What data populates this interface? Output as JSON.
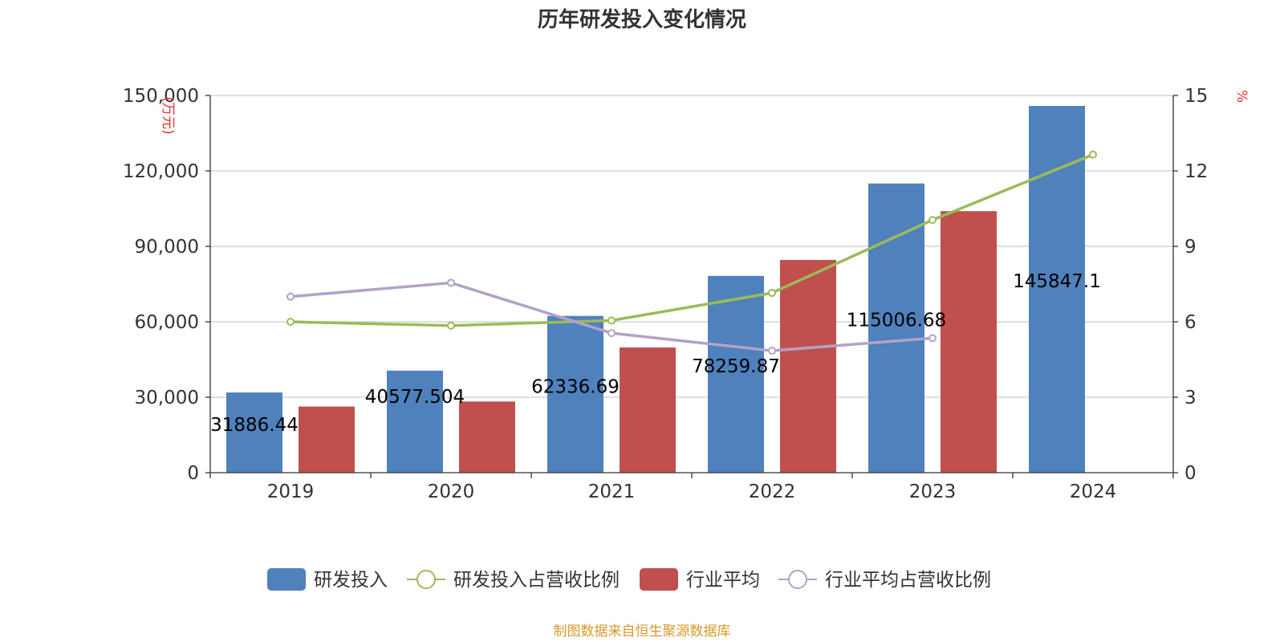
{
  "chart_data": {
    "type": "bar",
    "title": "历年研发投入变化情况",
    "categories": [
      "2019",
      "2020",
      "2021",
      "2022",
      "2023",
      "2024"
    ],
    "y_left": {
      "label": "(万元)",
      "ylim": [
        0,
        150000
      ],
      "ticks": [
        "0",
        "30,000",
        "60,000",
        "90,000",
        "120,000",
        "150,000"
      ]
    },
    "y_right": {
      "label": "%",
      "ylim": [
        0,
        15
      ],
      "ticks": [
        "0",
        "3",
        "6",
        "9",
        "12",
        "15"
      ]
    },
    "series": [
      {
        "name": "研发投入",
        "kind": "bar",
        "axis": "left",
        "values": [
          31886.44,
          40577.504,
          62336.69,
          78259.87,
          115006.68,
          145847.1
        ],
        "labels": [
          "31886.44",
          "40577.504",
          "62336.69",
          "78259.87",
          "115006.68",
          "145847.1"
        ],
        "color": "#4f81bd"
      },
      {
        "name": "研发投入占营收比例",
        "kind": "line",
        "axis": "right",
        "values": [
          6.0,
          5.85,
          6.05,
          7.15,
          10.05,
          12.65
        ],
        "color": "#9bbb59"
      },
      {
        "name": "行业平均",
        "kind": "bar",
        "axis": "left",
        "values": [
          26300,
          28300,
          49800,
          84600,
          104000,
          null
        ],
        "color": "#c0504d"
      },
      {
        "name": "行业平均占营收比例",
        "kind": "line",
        "axis": "right",
        "values": [
          7.0,
          7.55,
          5.55,
          4.85,
          5.35,
          null
        ],
        "color": "#b3a2c7"
      }
    ],
    "grid": true,
    "legend_position": "bottom"
  },
  "footer": {
    "source": "制图数据来自恒生聚源数据库"
  },
  "colors": {
    "axis": "#333333",
    "grid": "#cccccc",
    "unit_label": "#e03030",
    "source_text": "#d49a2a"
  }
}
